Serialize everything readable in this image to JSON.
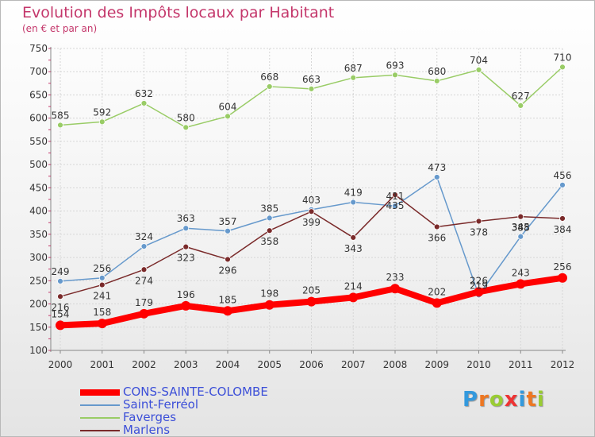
{
  "title": "Evolution des Impôts locaux par Habitant",
  "subtitle": "(en € et par an)",
  "logo_text": "Proxiti",
  "chart_data": {
    "type": "line",
    "x": [
      "2000",
      "2001",
      "2002",
      "2003",
      "2004",
      "2005",
      "2006",
      "2007",
      "2008",
      "2009",
      "2010",
      "2011",
      "2012"
    ],
    "ylim": [
      100,
      750
    ],
    "yticks": [
      "100",
      "150",
      "200",
      "250",
      "300",
      "350",
      "400",
      "450",
      "500",
      "550",
      "600",
      "650",
      "700",
      "750"
    ],
    "grid": true,
    "series": [
      {
        "name": "CONS-SAINTE-COLOMBE",
        "color": "#ff0000",
        "values": [
          154,
          158,
          179,
          196,
          185,
          198,
          205,
          214,
          233,
          202,
          226,
          243,
          256
        ]
      },
      {
        "name": "Saint-Ferréol",
        "color": "#6699cc",
        "values": [
          249,
          256,
          324,
          363,
          357,
          385,
          403,
          419,
          411,
          473,
          219,
          345,
          456
        ]
      },
      {
        "name": "Faverges",
        "color": "#99cc66",
        "values": [
          585,
          592,
          632,
          580,
          604,
          668,
          663,
          687,
          693,
          680,
          704,
          627,
          710
        ]
      },
      {
        "name": "Marlens",
        "color": "#7a2a2a",
        "values": [
          216,
          241,
          274,
          323,
          296,
          358,
          399,
          343,
          435,
          366,
          378,
          388,
          384
        ]
      }
    ]
  }
}
